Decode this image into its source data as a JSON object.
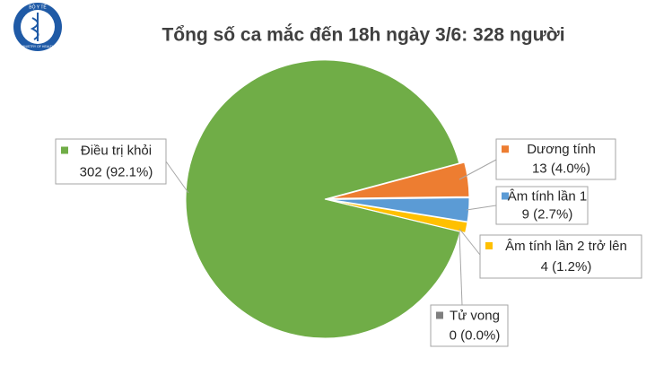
{
  "logo": {
    "top": "BỘ Y TẾ",
    "bottom": "MINISTRY OF HEALTH"
  },
  "chart_data": {
    "type": "pie",
    "title": "Tổng số ca mắc đến 18h ngày 3/6: 328 người",
    "categories": [
      "Dương tính",
      "Âm tính lần 1",
      "Âm tính lần 2 trở lên",
      "Tử vong",
      "Điều trị khỏi"
    ],
    "values": [
      13,
      9,
      4,
      0,
      302
    ],
    "value_labels": [
      "13 (4.0%)",
      "9 (2.7%)",
      "4 (1.2%)",
      "0 (0.0%)",
      "302 (92.1%)"
    ],
    "colors": [
      "#ed7d31",
      "#5b9bd5",
      "#ffc000",
      "#7f7f7f",
      "#70ad47"
    ]
  }
}
